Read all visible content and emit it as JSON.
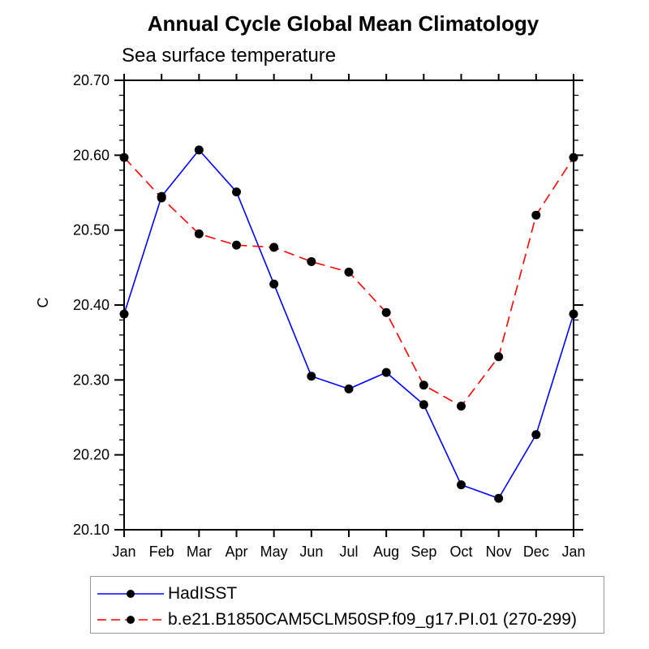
{
  "chart_data": {
    "type": "line",
    "title": "Annual Cycle Global Mean Climatology",
    "subtitle": "Sea surface temperature",
    "ylabel": "C",
    "categories": [
      "Jan",
      "Feb",
      "Mar",
      "Apr",
      "May",
      "Jun",
      "Jul",
      "Aug",
      "Sep",
      "Oct",
      "Nov",
      "Dec",
      "Jan"
    ],
    "ylim": [
      20.1,
      20.7
    ],
    "ytick_step": 0.1,
    "yminor_step": 0.02,
    "grid": false,
    "legend_position": "bottom-left-box",
    "marker_color": "#000000",
    "axis_color": "#000000",
    "series": [
      {
        "name": "HadISST",
        "color": "#0000ff",
        "dash": "solid",
        "marker": "filled-circle",
        "values": [
          20.388,
          20.545,
          20.607,
          20.551,
          20.428,
          20.305,
          20.288,
          20.31,
          20.267,
          20.16,
          20.142,
          20.227,
          20.388
        ]
      },
      {
        "name": "b.e21.B1850CAM5CLM50SP.f09_g17.PI.01 (270-299)",
        "color": "#ff0000",
        "dash": "dashed",
        "marker": "filled-circle",
        "values": [
          20.597,
          20.543,
          20.495,
          20.48,
          20.477,
          20.458,
          20.444,
          20.39,
          20.293,
          20.265,
          20.331,
          20.52,
          20.597
        ]
      }
    ]
  }
}
